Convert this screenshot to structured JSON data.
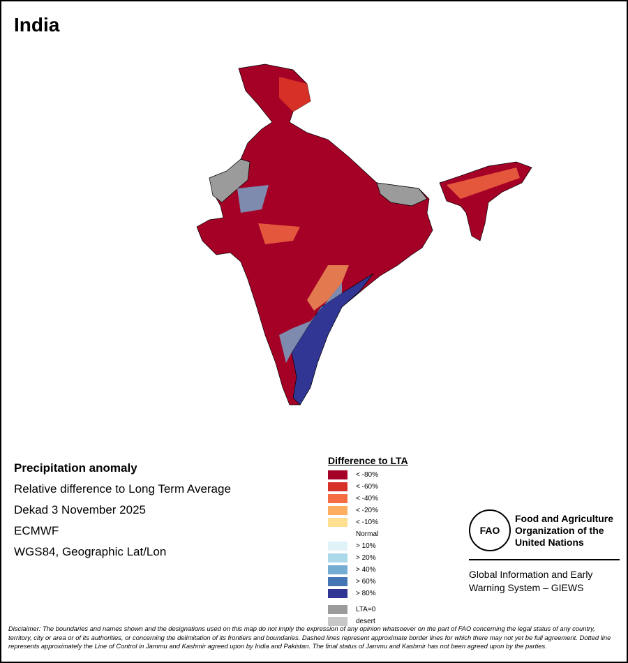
{
  "title": "India",
  "info": {
    "heading": "Precipitation anomaly",
    "lines": [
      "Relative difference to Long Term Average",
      "Dekad 3 November 2025",
      "ECMWF",
      "WGS84, Geographic Lat/Lon"
    ]
  },
  "legend": {
    "title": "Difference to LTA",
    "items": [
      {
        "label": "< -80%",
        "color": "#a50026"
      },
      {
        "label": "< -60%",
        "color": "#d73027"
      },
      {
        "label": "< -40%",
        "color": "#f46d43"
      },
      {
        "label": "< -20%",
        "color": "#fdae61"
      },
      {
        "label": "< -10%",
        "color": "#fee090"
      },
      {
        "label": "Normal",
        "color": "#ffffff"
      },
      {
        "label": "> 10%",
        "color": "#e0f3f8"
      },
      {
        "label": "> 20%",
        "color": "#abd9e9"
      },
      {
        "label": "> 40%",
        "color": "#74add1"
      },
      {
        "label": "> 60%",
        "color": "#4575b4"
      },
      {
        "label": "> 80%",
        "color": "#313695"
      }
    ],
    "extra": [
      {
        "label": "LTA=0",
        "color": "#9b9b9b"
      },
      {
        "label": "desert",
        "color": "#c8c8c8"
      }
    ]
  },
  "logo": {
    "seal_text": "FAO",
    "org_lines": [
      "Food and Agriculture",
      "Organization of the",
      "United Nations"
    ],
    "giews_lines": [
      "Global Information and Early",
      "Warning System – GIEWS"
    ]
  },
  "disclaimer": "Disclaimer: The boundaries and names shown and the designations used on this map do not imply the expression of any opinion whatsoever on the part of FAO concerning the legal status of any country, territory, city or area or of its authorities, or concerning the delimitation of its frontiers and boundaries. Dashed lines represent approximate border lines for which there may not yet be full agreement. Dotted line represents approximately the Line of Control in Jammu and Kashmir agreed upon by India and Pakistan. The final status of Jammu and Kashmir has not been agreed upon by the parties."
}
